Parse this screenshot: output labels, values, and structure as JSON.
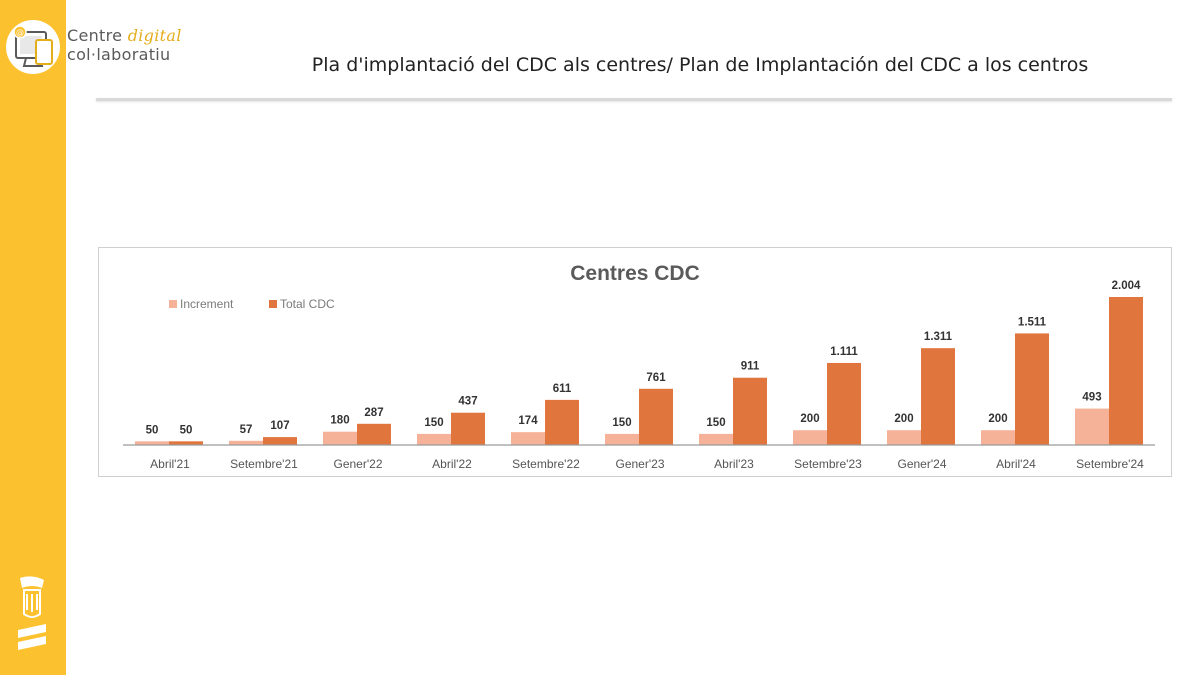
{
  "header": {
    "logo_line1_a": "Centre",
    "logo_line1_b": "digital",
    "logo_line2": "col·laboratiu",
    "title": "Pla d'implantació del CDC als centres/ Plan de Implantación del CDC a los centros"
  },
  "colors": {
    "sidebar": "#fcc12e",
    "increment": "#f6b299",
    "total": "#e0763e"
  },
  "chart_data": {
    "type": "bar",
    "title": "Centres CDC",
    "legend_position": "top-left",
    "grid": false,
    "categories": [
      "Abril'21",
      "Setembre'21",
      "Gener'22",
      "Abril'22",
      "Setembre'22",
      "Gener'23",
      "Abril'23",
      "Setembre'23",
      "Gener'24",
      "Abril'24",
      "Setembre'24"
    ],
    "series": [
      {
        "name": "Increment",
        "values": [
          50,
          57,
          180,
          150,
          174,
          150,
          150,
          200,
          200,
          200,
          493
        ],
        "labels": [
          "50",
          "57",
          "180",
          "150",
          "174",
          "150",
          "150",
          "200",
          "200",
          "200",
          "493"
        ]
      },
      {
        "name": "Total CDC",
        "values": [
          50,
          107,
          287,
          437,
          611,
          761,
          911,
          1111,
          1311,
          1511,
          2004
        ],
        "labels": [
          "50",
          "107",
          "287",
          "437",
          "611",
          "761",
          "911",
          "1.111",
          "1.311",
          "1.511",
          "2.004"
        ]
      }
    ],
    "ylim": [
      0,
      2004
    ]
  }
}
